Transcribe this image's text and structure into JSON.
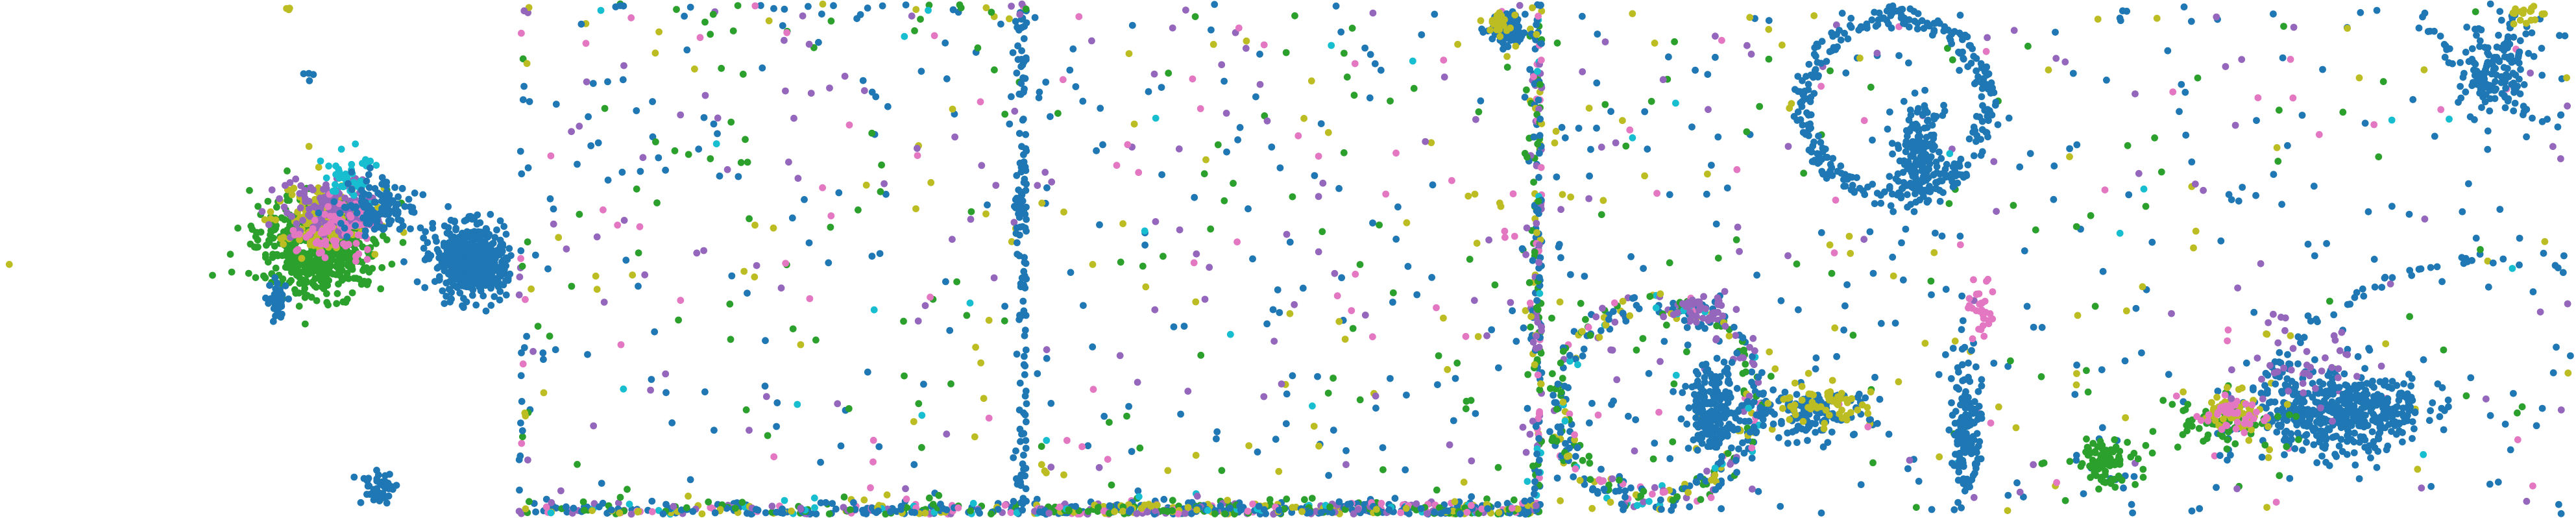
{
  "colors": {
    "blue": "#1f77b4",
    "green": "#2ca02c",
    "olive": "#bcbd22",
    "purple": "#9467bd",
    "pink": "#e377c2",
    "cyan": "#17becf"
  },
  "chart_data": [
    {
      "type": "scatter",
      "axes": "hidden",
      "grid": false,
      "legend": "none",
      "description_key": "panel-1",
      "clusters": [
        {
          "series": "green",
          "center": [
            0.62,
            0.48
          ],
          "spread": [
            0.12,
            0.09
          ],
          "count": 520
        },
        {
          "series": "olive",
          "center": [
            0.63,
            0.42
          ],
          "spread": [
            0.1,
            0.07
          ],
          "count": 160
        },
        {
          "series": "purple",
          "center": [
            0.64,
            0.4
          ],
          "spread": [
            0.09,
            0.06
          ],
          "count": 140
        },
        {
          "series": "pink",
          "center": [
            0.66,
            0.44
          ],
          "spread": [
            0.08,
            0.06
          ],
          "count": 80
        },
        {
          "series": "cyan",
          "center": [
            0.68,
            0.34
          ],
          "spread": [
            0.05,
            0.05
          ],
          "count": 40
        },
        {
          "series": "blue",
          "center": [
            0.74,
            0.4
          ],
          "spread": [
            0.08,
            0.05
          ],
          "count": 120
        },
        {
          "series": "blue",
          "center": [
            0.92,
            0.5
          ],
          "spread": [
            0.07,
            0.07
          ],
          "count": 520
        },
        {
          "series": "blue",
          "center": [
            0.54,
            0.58
          ],
          "spread": [
            0.02,
            0.04
          ],
          "count": 40
        },
        {
          "series": "blue",
          "center": [
            0.74,
            0.95
          ],
          "spread": [
            0.03,
            0.03
          ],
          "count": 50
        },
        {
          "series": "blue",
          "center": [
            0.6,
            0.14
          ],
          "spread": [
            0.01,
            0.01
          ],
          "count": 4
        },
        {
          "series": "olive",
          "center": [
            0.56,
            0.01
          ],
          "spread": [
            0.01,
            0.005
          ],
          "count": 3
        },
        {
          "series": "olive",
          "center": [
            0.01,
            0.51
          ],
          "spread": [
            0.002,
            0.002
          ],
          "count": 1
        }
      ]
    },
    {
      "type": "scatter",
      "axes": "hidden",
      "grid": false,
      "legend": "none",
      "description_key": "panel-2",
      "uniform": {
        "blue": 90,
        "green": 60,
        "olive": 35,
        "purple": 55,
        "pink": 25,
        "cyan": 8
      },
      "edges": [
        {
          "side": "bottom",
          "count": 260,
          "mix": "all"
        },
        {
          "side": "right",
          "count": 140,
          "mix": "blue"
        },
        {
          "side": "top",
          "count": 40,
          "mix": "all"
        },
        {
          "side": "left",
          "count": 30,
          "mix": "all"
        }
      ]
    },
    {
      "type": "scatter",
      "axes": "hidden",
      "grid": false,
      "legend": "none",
      "description_key": "panel-3",
      "uniform": {
        "blue": 110,
        "green": 55,
        "olive": 45,
        "purple": 55,
        "pink": 35,
        "cyan": 8
      },
      "edges": [
        {
          "side": "bottom",
          "count": 520,
          "mix": "all"
        },
        {
          "side": "right",
          "count": 240,
          "mix": "all"
        }
      ],
      "clusters": [
        {
          "series": "blue",
          "center": [
            0.93,
            0.05
          ],
          "spread": [
            0.03,
            0.03
          ],
          "count": 120
        },
        {
          "series": "olive",
          "center": [
            0.92,
            0.04
          ],
          "spread": [
            0.03,
            0.02
          ],
          "count": 30
        }
      ]
    },
    {
      "type": "scatter",
      "axes": "hidden",
      "grid": false,
      "legend": "none",
      "description_key": "panel-4",
      "uniform": {
        "blue": 150,
        "green": 50,
        "olive": 45,
        "purple": 40,
        "pink": 20,
        "cyan": 8
      },
      "rings": [
        {
          "center": [
            0.21,
            0.78
          ],
          "radius": [
            0.17,
            0.22
          ],
          "count": 380,
          "mix": "all"
        },
        {
          "center": [
            0.68,
            0.2
          ],
          "radius": [
            0.16,
            0.2
          ],
          "count": 300,
          "mix": "blue"
        }
      ],
      "clusters": [
        {
          "series": "blue",
          "center": [
            0.32,
            0.8
          ],
          "spread": [
            0.05,
            0.09
          ],
          "count": 200
        },
        {
          "series": "blue",
          "center": [
            0.82,
            0.82
          ],
          "spread": [
            0.03,
            0.12
          ],
          "count": 150
        },
        {
          "series": "blue",
          "center": [
            0.73,
            0.3
          ],
          "spread": [
            0.05,
            0.1
          ],
          "count": 160
        },
        {
          "series": "blue",
          "center": [
            0.52,
            0.8
          ],
          "spread": [
            0.12,
            0.05
          ],
          "count": 120
        },
        {
          "series": "olive",
          "center": [
            0.55,
            0.78
          ],
          "spread": [
            0.1,
            0.04
          ],
          "count": 60
        },
        {
          "series": "purple",
          "center": [
            0.3,
            0.6
          ],
          "spread": [
            0.05,
            0.03
          ],
          "count": 40
        },
        {
          "series": "pink",
          "center": [
            0.85,
            0.6
          ],
          "spread": [
            0.03,
            0.06
          ],
          "count": 30
        }
      ]
    },
    {
      "type": "scatter",
      "axes": "hidden",
      "grid": false,
      "legend": "none",
      "description_key": "panel-5",
      "uniform": {
        "blue": 120,
        "green": 35,
        "olive": 30,
        "purple": 30,
        "pink": 20,
        "cyan": 6
      },
      "arcs": [
        {
          "center": [
            1.05,
            -0.12
          ],
          "radius": [
            0.36,
            0.38
          ],
          "count": 160,
          "mix": "blue"
        },
        {
          "center": [
            0.85,
            1.05
          ],
          "radius": [
            0.55,
            0.57
          ],
          "count": 180,
          "mix": "blue"
        },
        {
          "center": [
            -0.05,
            1.08
          ],
          "radius": [
            0.2,
            0.22
          ],
          "count": 60,
          "mix": "blue"
        }
      ],
      "clusters": [
        {
          "series": "blue",
          "center": [
            0.55,
            0.8
          ],
          "spread": [
            0.16,
            0.08
          ],
          "count": 480
        },
        {
          "series": "blue",
          "center": [
            0.85,
            0.12
          ],
          "spread": [
            0.08,
            0.1
          ],
          "count": 140
        },
        {
          "series": "green",
          "center": [
            0.08,
            0.9
          ],
          "spread": [
            0.05,
            0.04
          ],
          "count": 90
        },
        {
          "series": "green",
          "center": [
            0.32,
            0.82
          ],
          "spread": [
            0.12,
            0.05
          ],
          "count": 60
        },
        {
          "series": "olive",
          "center": [
            0.33,
            0.8
          ],
          "spread": [
            0.08,
            0.04
          ],
          "count": 60
        },
        {
          "series": "pink",
          "center": [
            0.33,
            0.8
          ],
          "spread": [
            0.06,
            0.04
          ],
          "count": 40
        },
        {
          "series": "purple",
          "center": [
            0.45,
            0.7
          ],
          "spread": [
            0.15,
            0.1
          ],
          "count": 40
        },
        {
          "series": "olive",
          "center": [
            0.92,
            0.02
          ],
          "spread": [
            0.04,
            0.02
          ],
          "count": 20
        }
      ]
    }
  ]
}
